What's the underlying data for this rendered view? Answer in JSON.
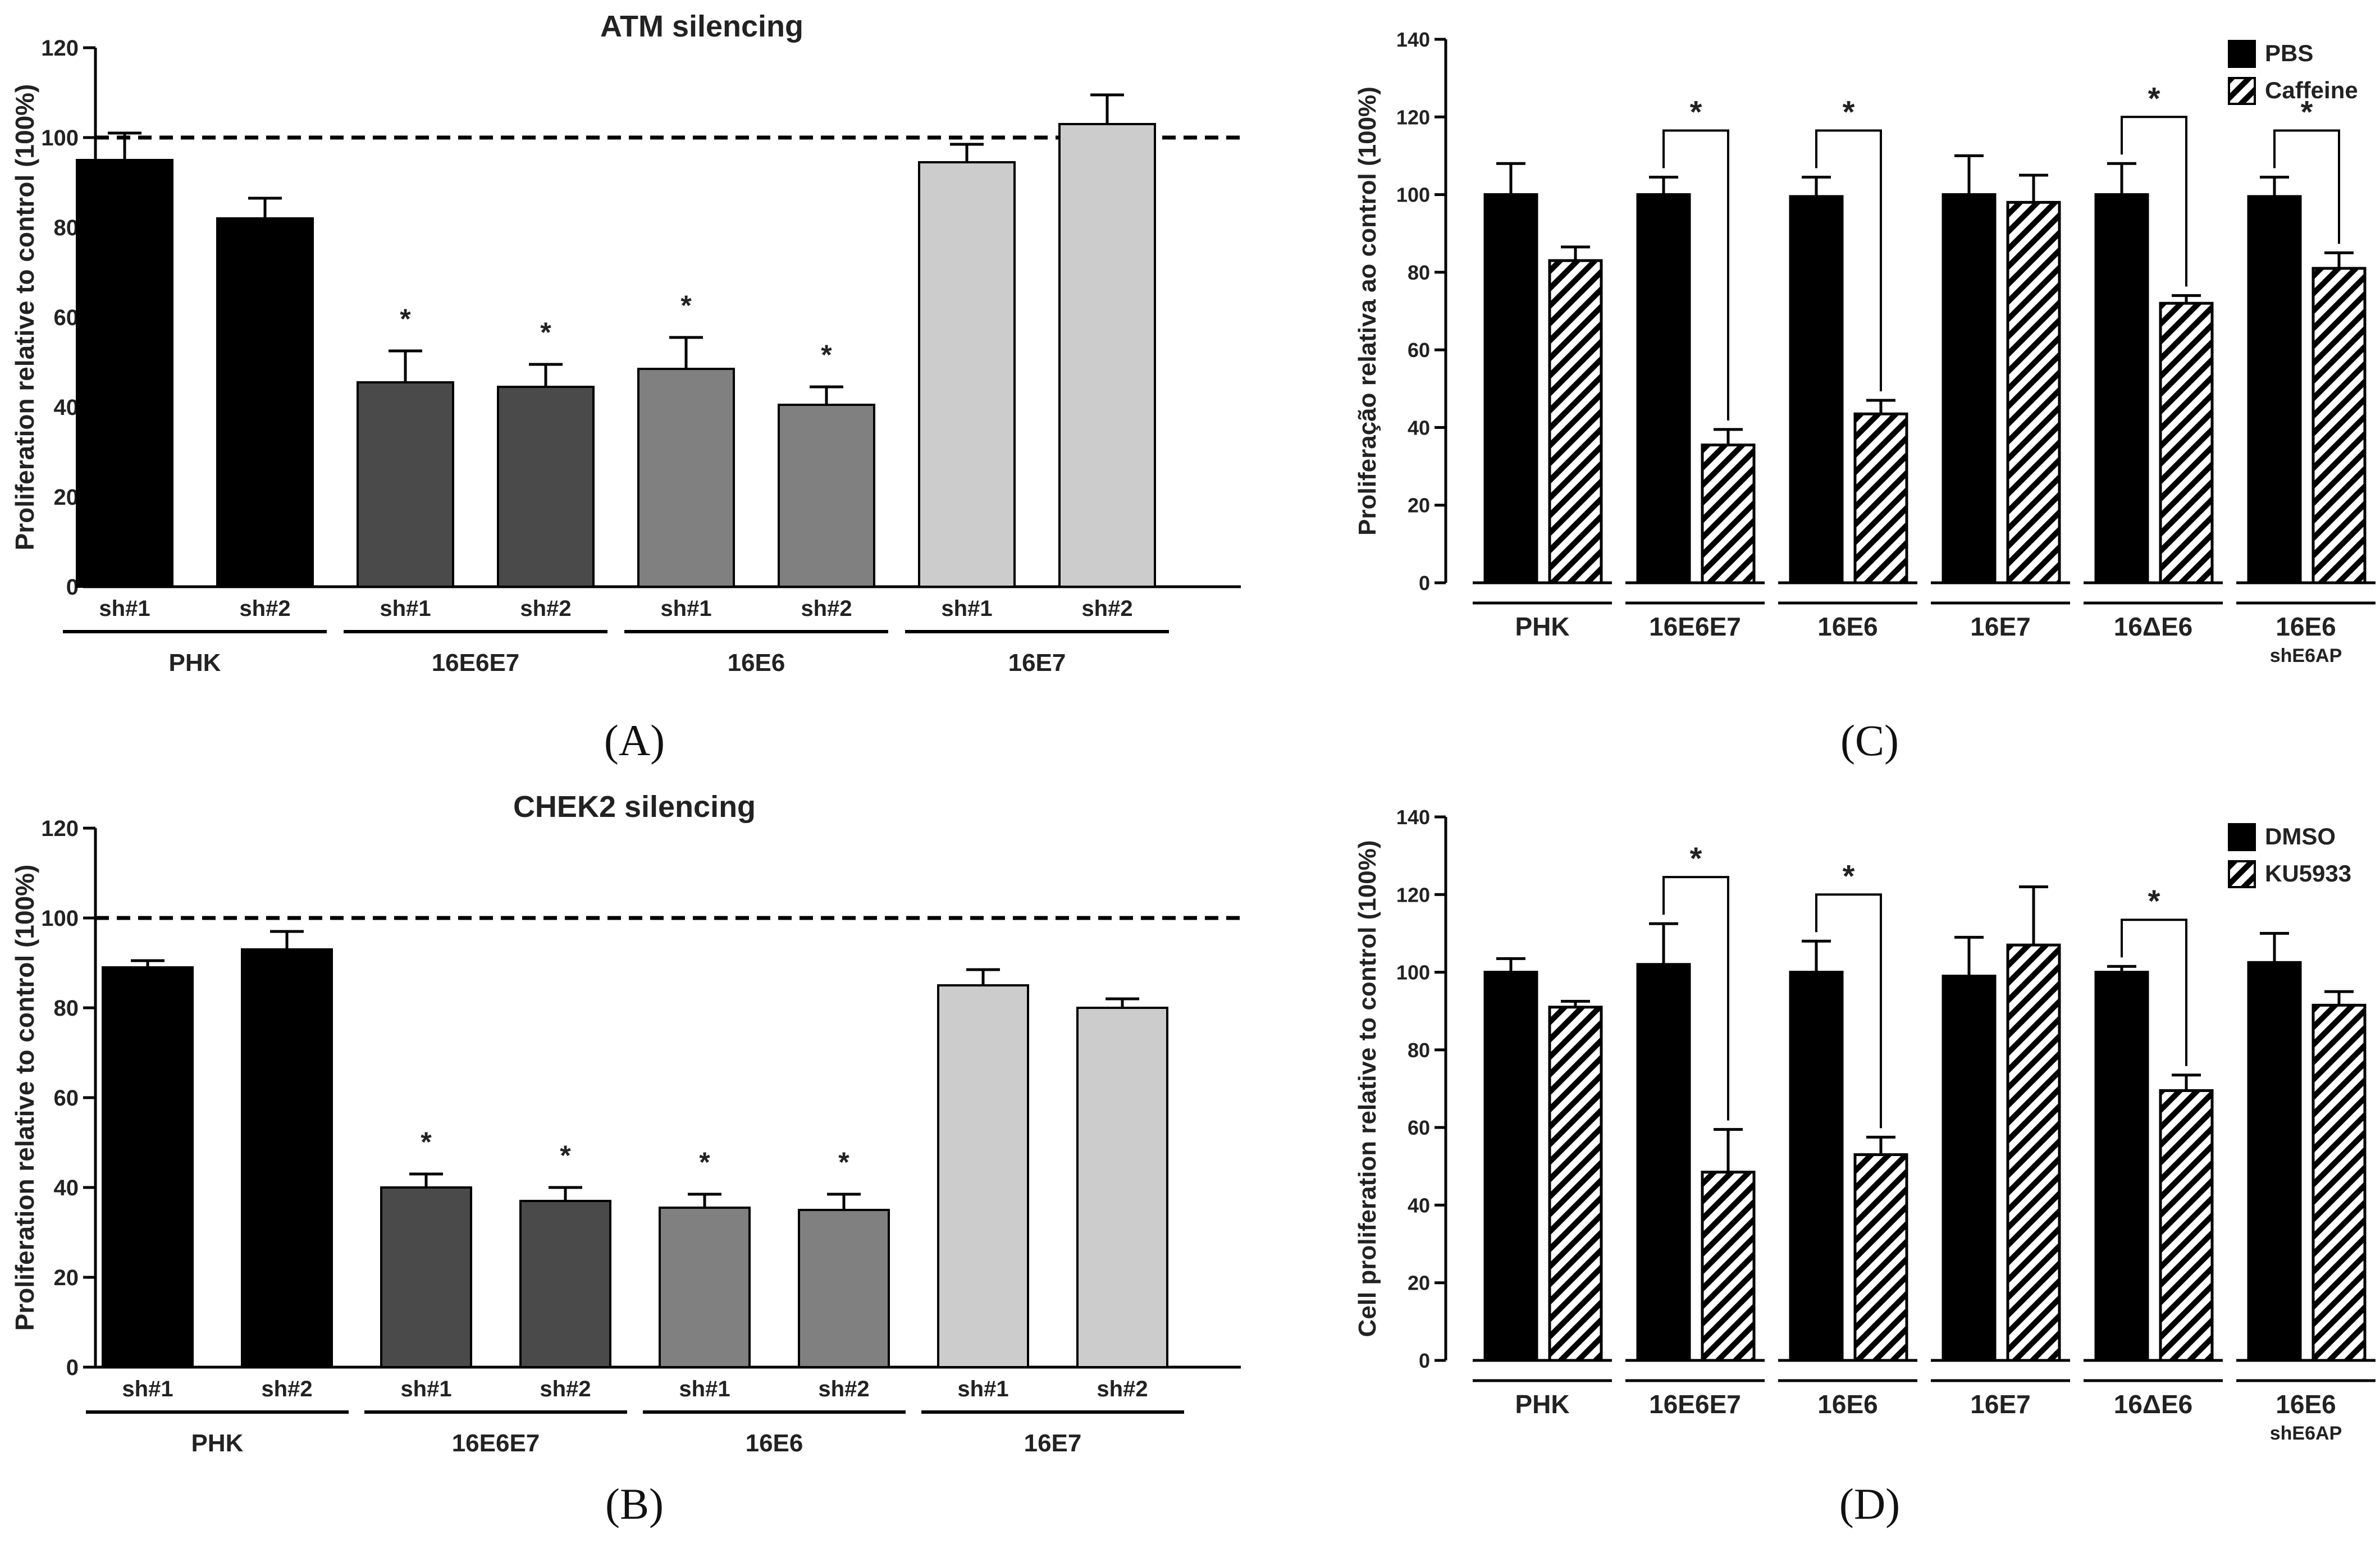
{
  "chart_data": [
    {
      "panel_label": "(A)",
      "type": "bar",
      "title": "ATM silencing",
      "ylabel": "Proliferation relative to control (100%)",
      "xlabel": "",
      "ylim": [
        0,
        120
      ],
      "yticks": [
        "0",
        "20",
        "40",
        "60",
        "80",
        "100",
        "120"
      ],
      "reference_line": 100,
      "categories": [
        "sh#1",
        "sh#2",
        "sh#1",
        "sh#2",
        "sh#1",
        "sh#2",
        "sh#1",
        "sh#2"
      ],
      "values": [
        95,
        82,
        45.5,
        44.5,
        48.5,
        40.5,
        94.5,
        103
      ],
      "errors": [
        6,
        4.5,
        7,
        5,
        7,
        4,
        4,
        6.5
      ],
      "significance": [
        "",
        "",
        "*",
        "*",
        "*",
        "*",
        "",
        ""
      ],
      "bar_colors": [
        "#000000",
        "#000000",
        "#4a4a4a",
        "#4a4a4a",
        "#808080",
        "#808080",
        "#cccccc",
        "#cccccc"
      ],
      "groups": [
        {
          "label": "PHK",
          "start": 0,
          "end": 1
        },
        {
          "label": "16E6E7",
          "start": 2,
          "end": 3
        },
        {
          "label": "16E6",
          "start": 4,
          "end": 5
        },
        {
          "label": "16E7",
          "start": 6,
          "end": 7
        }
      ]
    },
    {
      "panel_label": "(B)",
      "type": "bar",
      "title": "CHEK2 silencing",
      "ylabel": "Proliferation relative to control (100%)",
      "xlabel": "",
      "ylim": [
        0,
        120
      ],
      "yticks": [
        "0",
        "20",
        "40",
        "60",
        "80",
        "100",
        "120"
      ],
      "reference_line": 100,
      "categories": [
        "sh#1",
        "sh#2",
        "sh#1",
        "sh#2",
        "sh#1",
        "sh#2",
        "sh#1",
        "sh#2"
      ],
      "values": [
        89,
        93,
        40,
        37,
        35.5,
        35,
        85,
        80
      ],
      "errors": [
        1.5,
        4,
        3,
        3,
        3,
        3.5,
        3.5,
        2
      ],
      "significance": [
        "",
        "",
        "*",
        "*",
        "*",
        "*",
        "",
        ""
      ],
      "bar_colors": [
        "#000000",
        "#000000",
        "#4a4a4a",
        "#4a4a4a",
        "#808080",
        "#808080",
        "#cccccc",
        "#cccccc"
      ],
      "groups": [
        {
          "label": "PHK",
          "start": 0,
          "end": 1
        },
        {
          "label": "16E6E7",
          "start": 2,
          "end": 3
        },
        {
          "label": "16E6",
          "start": 4,
          "end": 5
        },
        {
          "label": "16E7",
          "start": 6,
          "end": 7
        }
      ]
    },
    {
      "panel_label": "(C)",
      "type": "bar",
      "title": "",
      "ylabel": "Proliferação relativa ao control (100%)",
      "xlabel": "",
      "ylim": [
        0,
        140
      ],
      "yticks": [
        "0",
        "20",
        "40",
        "60",
        "80",
        "100",
        "120",
        "140"
      ],
      "categories": [
        "PHK",
        "16E6E7",
        "16E6",
        "16E7",
        "16ΔE6",
        "16E6"
      ],
      "category_sublabels": [
        "",
        "",
        "",
        "",
        "",
        "shE6AP"
      ],
      "series": [
        {
          "name": "PBS",
          "values": [
            100,
            100,
            99.5,
            100,
            100,
            99.5
          ],
          "errors": [
            8,
            4.5,
            5,
            10,
            8,
            5
          ]
        },
        {
          "name": "Caffeine",
          "values": [
            83,
            35.5,
            43.5,
            98,
            72,
            81
          ],
          "errors": [
            3.5,
            4,
            3.5,
            7,
            2,
            4
          ]
        }
      ],
      "significance": [
        "",
        "*",
        "*",
        "",
        "*",
        "*"
      ],
      "legend": [
        "PBS",
        "Caffeine"
      ],
      "legend_position": "top-right"
    },
    {
      "panel_label": "(D)",
      "type": "bar",
      "title": "",
      "ylabel": "Cell proliferation relative to control (100%)",
      "xlabel": "",
      "ylim": [
        0,
        140
      ],
      "yticks": [
        "0",
        "20",
        "40",
        "60",
        "80",
        "100",
        "120",
        "140"
      ],
      "categories": [
        "PHK",
        "16E6E7",
        "16E6",
        "16E7",
        "16ΔE6",
        "16E6"
      ],
      "category_sublabels": [
        "",
        "",
        "",
        "",
        "",
        "shE6AP"
      ],
      "series": [
        {
          "name": "DMSO",
          "values": [
            100,
            102,
            100,
            99,
            100,
            102.5
          ],
          "errors": [
            3.5,
            10.5,
            8,
            10,
            1.5,
            7.5
          ]
        },
        {
          "name": "KU5933",
          "values": [
            91,
            48.5,
            53,
            107,
            69.5,
            91.5
          ],
          "errors": [
            1.5,
            11,
            4.5,
            15,
            4,
            3.5
          ]
        }
      ],
      "significance": [
        "",
        "*",
        "*",
        "",
        "*",
        ""
      ],
      "legend": [
        "DMSO",
        "KU5933"
      ],
      "legend_position": "top-right"
    }
  ]
}
